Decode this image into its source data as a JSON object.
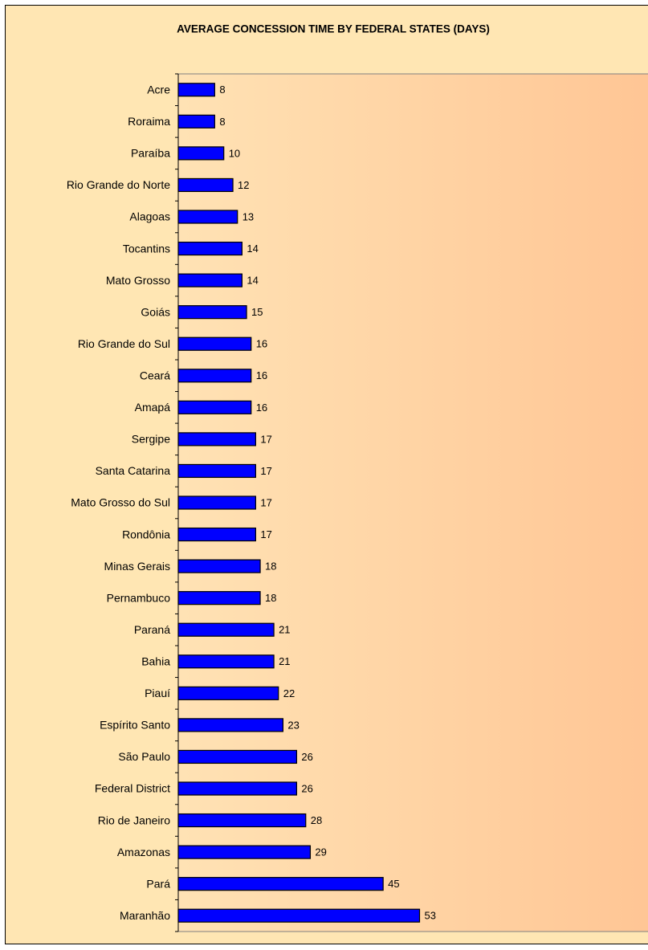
{
  "chart_data": {
    "type": "bar",
    "orientation": "horizontal",
    "title": "AVERAGE CONCESSION TIME BY FEDERAL STATES (DAYS)",
    "categories": [
      "Acre",
      "Roraima",
      "Paraíba",
      "Rio Grande do Norte",
      "Alagoas",
      "Tocantins",
      "Mato Grosso",
      "Goiás",
      "Rio Grande do Sul",
      "Ceará",
      "Amapá",
      "Sergipe",
      "Santa Catarina",
      "Mato Grosso do Sul",
      "Rondônia",
      "Minas Gerais",
      "Pernambuco",
      "Paraná",
      "Bahia",
      "Piauí",
      "Espírito Santo",
      "São Paulo",
      "Federal District",
      "Rio de Janeiro",
      "Amazonas",
      "Pará",
      "Maranhão"
    ],
    "values": [
      8,
      8,
      10,
      12,
      13,
      14,
      14,
      15,
      16,
      16,
      16,
      17,
      17,
      17,
      17,
      18,
      18,
      21,
      21,
      22,
      23,
      26,
      26,
      28,
      29,
      45,
      53
    ],
    "color": "#0000ff",
    "xlim": [
      0,
      103
    ]
  }
}
